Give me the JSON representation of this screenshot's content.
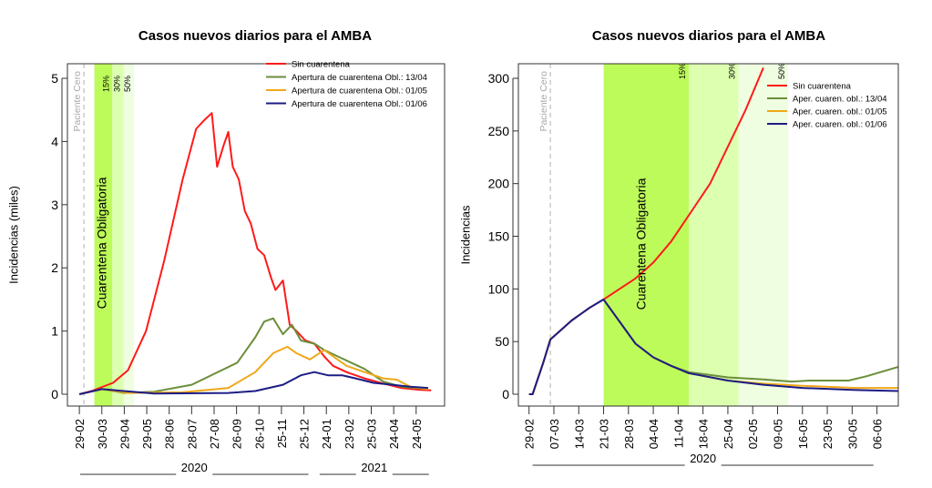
{
  "chart_data": [
    {
      "type": "line",
      "title": "Casos nuevos diarios para el AMBA",
      "xlabel": "",
      "ylabel": "Incidencias (miles)",
      "xlim": [
        "2020-02-13",
        "2021-07-01"
      ],
      "ylim": [
        0,
        5.2
      ],
      "yticks": [
        0,
        1,
        2,
        3,
        4,
        5
      ],
      "xticks": [
        "2020-02-29",
        "2020-03-30",
        "2020-04-29",
        "2020-05-29",
        "2020-06-28",
        "2020-07-28",
        "2020-08-27",
        "2020-09-26",
        "2020-10-26",
        "2020-11-25",
        "2020-12-25",
        "2021-01-24",
        "2021-02-23",
        "2021-03-25",
        "2021-04-24",
        "2021-05-24"
      ],
      "xtick_labels": [
        "29-02",
        "30-03",
        "29-04",
        "29-05",
        "28-06",
        "28-07",
        "27-08",
        "26-09",
        "26-10",
        "25-11",
        "25-12",
        "24-01",
        "23-02",
        "25-03",
        "24-04",
        "24-05"
      ],
      "year_labels": [
        {
          "text": "2020",
          "from": "2020-03-01",
          "to": "2020-12-31"
        },
        {
          "text": "2021",
          "from": "2021-01-15",
          "to": "2021-06-10"
        }
      ],
      "grid": false,
      "legend": "top-right",
      "vline": {
        "date": "2020-03-06",
        "label": "Paciente Cero",
        "color": "#b0b0b0"
      },
      "bands": [
        {
          "from": "2020-03-20",
          "to": "2020-04-13",
          "color": "#bdfb5a",
          "label": "15%",
          "text": "Cuarentena Obligatoria"
        },
        {
          "from": "2020-04-13",
          "to": "2020-04-28",
          "color": "#dcffb0",
          "label": "30%"
        },
        {
          "from": "2020-04-28",
          "to": "2020-05-12",
          "color": "#effee0",
          "label": "50%"
        }
      ],
      "series": [
        {
          "name": "Sin cuarentena",
          "color": "#ff1a1a",
          "x": [
            "2020-02-29",
            "2020-03-16",
            "2020-04-14",
            "2020-05-04",
            "2020-05-28",
            "2020-06-21",
            "2020-07-16",
            "2020-08-03",
            "2020-08-15",
            "2020-08-24",
            "2020-08-31",
            "2020-09-09",
            "2020-09-15",
            "2020-09-21",
            "2020-09-29",
            "2020-10-07",
            "2020-10-15",
            "2020-10-24",
            "2020-11-02",
            "2020-11-11",
            "2020-11-17",
            "2020-11-27",
            "2020-12-06",
            "2020-12-15",
            "2020-12-27",
            "2021-01-08",
            "2021-01-21",
            "2021-02-02",
            "2021-02-20",
            "2021-03-16",
            "2021-04-10",
            "2021-05-04",
            "2021-05-28",
            "2021-06-13"
          ],
          "y": [
            0,
            0.05,
            0.18,
            0.38,
            1.0,
            2.1,
            3.4,
            4.2,
            4.35,
            4.45,
            3.6,
            3.95,
            4.15,
            3.6,
            3.4,
            2.9,
            2.7,
            2.3,
            2.2,
            1.85,
            1.65,
            1.8,
            1.1,
            1.0,
            0.85,
            0.8,
            0.6,
            0.45,
            0.35,
            0.25,
            0.17,
            0.1,
            0.07,
            0.06
          ]
        },
        {
          "name": "Apertura de cuarentena Obl.: 13/04",
          "color": "#6b8e3a",
          "x": [
            "2020-02-29",
            "2020-03-30",
            "2020-04-29",
            "2020-06-08",
            "2020-07-28",
            "2020-09-27",
            "2020-10-21",
            "2020-11-02",
            "2020-11-14",
            "2020-11-27",
            "2020-12-09",
            "2020-12-21",
            "2021-01-08",
            "2021-01-21",
            "2021-02-08",
            "2021-02-26",
            "2021-03-16",
            "2021-04-10",
            "2021-05-04",
            "2021-06-09"
          ],
          "y": [
            0,
            0.08,
            0.02,
            0.04,
            0.15,
            0.5,
            0.9,
            1.15,
            1.2,
            0.95,
            1.1,
            0.85,
            0.8,
            0.7,
            0.6,
            0.5,
            0.4,
            0.2,
            0.12,
            0.08
          ]
        },
        {
          "name": "Apertura de cuarentena Obl.: 01/05",
          "color": "#f0a818",
          "x": [
            "2020-02-29",
            "2020-03-30",
            "2020-05-04",
            "2020-07-16",
            "2020-09-15",
            "2020-10-21",
            "2020-11-14",
            "2020-12-03",
            "2020-12-15",
            "2021-01-02",
            "2021-01-21",
            "2021-02-02",
            "2021-02-20",
            "2021-03-16",
            "2021-04-10",
            "2021-04-28",
            "2021-05-16",
            "2021-06-09"
          ],
          "y": [
            0,
            0.08,
            0.02,
            0.03,
            0.1,
            0.35,
            0.65,
            0.75,
            0.65,
            0.55,
            0.7,
            0.6,
            0.45,
            0.35,
            0.25,
            0.23,
            0.12,
            0.08
          ]
        },
        {
          "name": "Apertura de cuarentena Obl.: 01/06",
          "color": "#1c1c86",
          "x": [
            "2020-02-29",
            "2020-03-30",
            "2020-06-08",
            "2020-09-15",
            "2020-10-21",
            "2020-11-27",
            "2020-12-21",
            "2021-01-08",
            "2021-01-26",
            "2021-02-14",
            "2021-03-04",
            "2021-03-28",
            "2021-04-22",
            "2021-05-16",
            "2021-06-09"
          ],
          "y": [
            0,
            0.08,
            0.01,
            0.02,
            0.05,
            0.15,
            0.3,
            0.35,
            0.3,
            0.3,
            0.25,
            0.18,
            0.15,
            0.12,
            0.1
          ]
        }
      ]
    },
    {
      "type": "line",
      "title": "Casos nuevos diarios para el AMBA",
      "xlabel": "",
      "ylabel": "Incidencias",
      "xlim": [
        "2020-02-26",
        "2020-06-12"
      ],
      "ylim": [
        0,
        312
      ],
      "yticks": [
        0,
        50,
        100,
        150,
        200,
        250,
        300
      ],
      "xticks": [
        "2020-02-29",
        "2020-03-07",
        "2020-03-14",
        "2020-03-21",
        "2020-03-28",
        "2020-04-04",
        "2020-04-11",
        "2020-04-18",
        "2020-04-25",
        "2020-05-02",
        "2020-05-09",
        "2020-05-16",
        "2020-05-23",
        "2020-05-30",
        "2020-06-06"
      ],
      "xtick_labels": [
        "29-02",
        "07-03",
        "14-03",
        "21-03",
        "28-03",
        "04-04",
        "11-04",
        "18-04",
        "25-04",
        "02-05",
        "09-05",
        "16-05",
        "23-05",
        "30-05",
        "06-06"
      ],
      "year_labels": [
        {
          "text": "2020",
          "from": "2020-03-01",
          "to": "2020-06-05"
        }
      ],
      "grid": false,
      "legend": "top-right",
      "vline": {
        "date": "2020-03-06",
        "label": "Paciente Cero",
        "color": "#b0b0b0"
      },
      "bands": [
        {
          "from": "2020-03-21",
          "to": "2020-04-14",
          "color": "#bdfb5a",
          "label": "15%",
          "text": "Cuarentena Obligatoria"
        },
        {
          "from": "2020-04-14",
          "to": "2020-04-28",
          "color": "#dcffb0",
          "label": "30%"
        },
        {
          "from": "2020-04-28",
          "to": "2020-05-12",
          "color": "#effee0",
          "label": "50%"
        }
      ],
      "series": [
        {
          "name": "Sin cuarentena",
          "color": "#ff1a1a",
          "x": [
            "2020-02-29",
            "2020-03-01",
            "2020-03-04",
            "2020-03-06",
            "2020-03-12",
            "2020-03-17",
            "2020-03-21",
            "2020-03-30",
            "2020-04-04",
            "2020-04-09",
            "2020-04-14",
            "2020-04-20",
            "2020-04-25",
            "2020-04-30",
            "2020-05-05"
          ],
          "y": [
            0,
            0,
            30,
            52,
            70,
            82,
            90,
            110,
            125,
            145,
            170,
            200,
            235,
            270,
            310
          ]
        },
        {
          "name": "Aper. cuaren. obl.: 13/04",
          "color": "#6b8e3a",
          "x": [
            "2020-02-29",
            "2020-03-01",
            "2020-03-04",
            "2020-03-06",
            "2020-03-12",
            "2020-03-17",
            "2020-03-21",
            "2020-03-30",
            "2020-04-04",
            "2020-04-09",
            "2020-04-14",
            "2020-04-25",
            "2020-05-05",
            "2020-05-13",
            "2020-05-18",
            "2020-05-29",
            "2020-06-03",
            "2020-06-12"
          ],
          "y": [
            0,
            0,
            30,
            52,
            70,
            82,
            90,
            48,
            35,
            27,
            21,
            16,
            14,
            12,
            13,
            13,
            17,
            26
          ]
        },
        {
          "name": "Aper. cuaren. obl.: 01/05",
          "color": "#f0a818",
          "x": [
            "2020-02-29",
            "2020-03-01",
            "2020-03-04",
            "2020-03-06",
            "2020-03-12",
            "2020-03-17",
            "2020-03-21",
            "2020-03-30",
            "2020-04-04",
            "2020-04-09",
            "2020-04-14",
            "2020-04-25",
            "2020-05-05",
            "2020-05-16",
            "2020-05-31",
            "2020-06-12"
          ],
          "y": [
            0,
            0,
            30,
            52,
            70,
            82,
            90,
            48,
            35,
            27,
            20,
            13,
            10,
            8,
            6,
            6
          ]
        },
        {
          "name": "Aper. cuaren. obl.: 01/06",
          "color": "#1c1c86",
          "x": [
            "2020-02-29",
            "2020-03-01",
            "2020-03-04",
            "2020-03-06",
            "2020-03-12",
            "2020-03-17",
            "2020-03-21",
            "2020-03-30",
            "2020-04-04",
            "2020-04-09",
            "2020-04-14",
            "2020-04-25",
            "2020-05-05",
            "2020-05-16",
            "2020-05-31",
            "2020-06-12"
          ],
          "y": [
            0,
            0,
            30,
            52,
            70,
            82,
            90,
            48,
            35,
            27,
            20,
            13,
            9,
            6,
            4,
            3
          ]
        }
      ]
    }
  ]
}
